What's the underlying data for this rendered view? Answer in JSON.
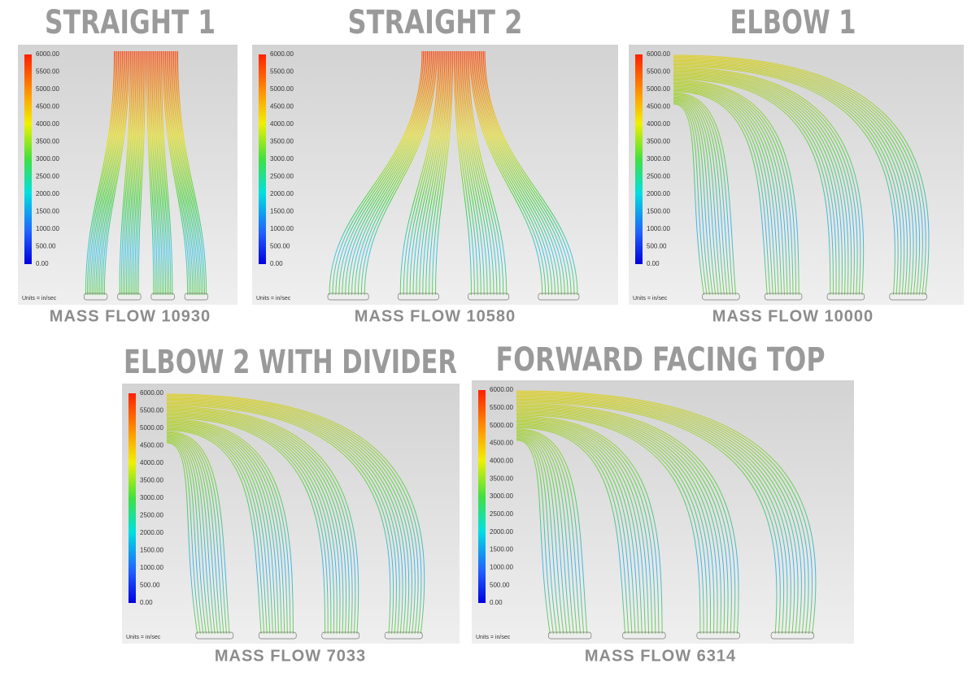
{
  "panels": [
    {
      "title": "STRAIGHT 1",
      "colorbar_ticks": [
        "6000.00",
        "5500.00",
        "5000.00",
        "4500.00",
        "4000.00",
        "3500.00",
        "3000.00",
        "2500.00",
        "2000.00",
        "1500.00",
        "1000.00",
        "500.00",
        "0.00"
      ],
      "units": "Units = in/sec",
      "caption": "MASS FLOW 10930"
    },
    {
      "title": "STRAIGHT 2",
      "colorbar_ticks": [
        "6000.00",
        "5500.00",
        "5000.00",
        "4500.00",
        "4000.00",
        "3500.00",
        "3000.00",
        "2500.00",
        "2000.00",
        "1500.00",
        "1000.00",
        "500.00",
        "0.00"
      ],
      "units": "Units = in/sec",
      "caption": "MASS FLOW 10580"
    },
    {
      "title": "ELBOW 1",
      "colorbar_ticks": [
        "6000.00",
        "5500.00",
        "5000.00",
        "4500.00",
        "4000.00",
        "3500.00",
        "3000.00",
        "2500.00",
        "2000.00",
        "1500.00",
        "1000.00",
        "500.00",
        "0.00"
      ],
      "units": "Units = in/sec",
      "caption": "MASS FLOW 10000"
    },
    {
      "title": "ELBOW 2 WITH DIVIDER",
      "colorbar_ticks": [
        "6000.00",
        "5500.00",
        "5000.00",
        "4500.00",
        "4000.00",
        "3500.00",
        "3000.00",
        "2500.00",
        "2000.00",
        "1500.00",
        "1000.00",
        "500.00",
        "0.00"
      ],
      "units": "Units = in/sec",
      "caption": "MASS FLOW 7033"
    },
    {
      "title": "FORWARD FACING TOP",
      "colorbar_ticks": [
        "6000.00",
        "5500.00",
        "5000.00",
        "4500.00",
        "4000.00",
        "3500.00",
        "3000.00",
        "2500.00",
        "2000.00",
        "1500.00",
        "1000.00",
        "500.00",
        "0.00"
      ],
      "units": "Units = in/sec",
      "caption": "MASS FLOW 6314"
    }
  ]
}
